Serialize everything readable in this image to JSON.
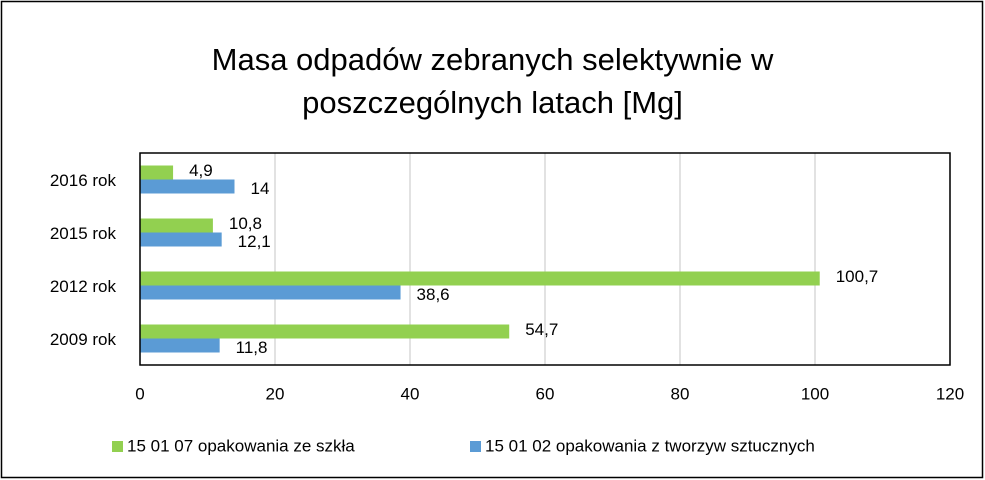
{
  "chart_data": {
    "type": "hbar",
    "title": "Masa odpadów zebranych selektywnie w poszczególnych latach [Mg]",
    "categories": [
      "2009 rok",
      "2012 rok",
      "2015 rok",
      "2016 rok"
    ],
    "series": [
      {
        "name": "15 01 07 opakowania ze szkła",
        "color": "#92d050",
        "values": [
          54.7,
          100.7,
          10.8,
          4.9
        ],
        "value_labels": [
          "54,7",
          "100,7",
          "10,8",
          "4,9"
        ]
      },
      {
        "name": "15 01 02 opakowania z tworzyw sztucznych",
        "color": "#5b9bd5",
        "values": [
          11.8,
          38.6,
          12.1,
          14
        ],
        "value_labels": [
          "11,8",
          "38,6",
          "12,1",
          "14"
        ]
      }
    ],
    "xlim": [
      0,
      120
    ],
    "xticks": [
      0,
      20,
      40,
      60,
      80,
      100,
      120
    ],
    "grid": true,
    "legend": "bottom"
  }
}
